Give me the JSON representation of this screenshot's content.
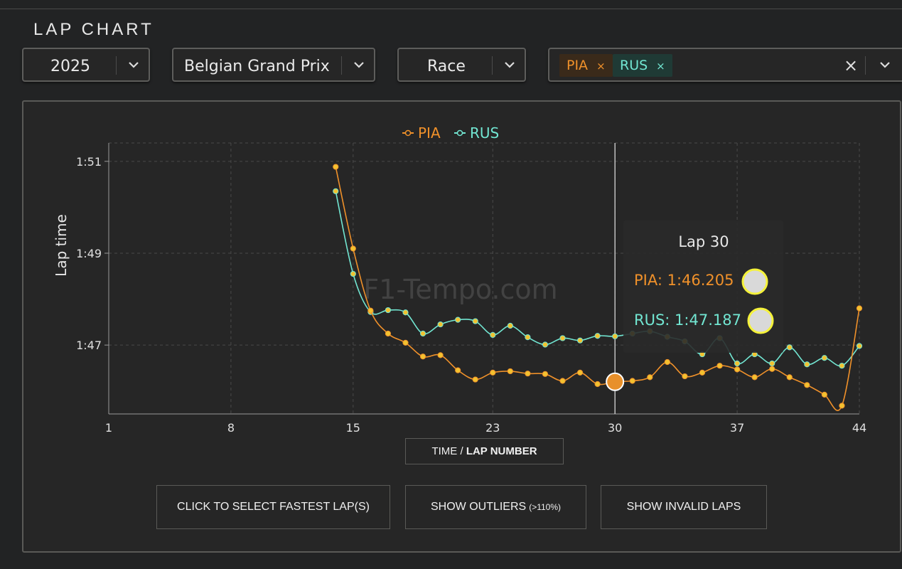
{
  "header": {
    "title": "LAP CHART"
  },
  "filters": {
    "year": "2025",
    "event": "Belgian Grand Prix",
    "session": "Race",
    "drivers": [
      {
        "code": "PIA",
        "remove": "×",
        "color": "#f0912a",
        "bg": "#3a2a1a"
      },
      {
        "code": "RUS",
        "remove": "×",
        "color": "#72e6d2",
        "bg": "#1f3a35"
      }
    ],
    "clear_icon": "×"
  },
  "watermark": "F1-Tempo.com",
  "tooltip": {
    "title": "Lap 30",
    "rows": [
      {
        "label": "PIA: 1:46.205",
        "color": "#f0912a"
      },
      {
        "label": "RUS: 1:47.187",
        "color": "#72e6d2"
      }
    ]
  },
  "axis_toggle": {
    "time": "TIME",
    "slash": " / ",
    "lap": "LAP NUMBER"
  },
  "buttons": {
    "fastest": "CLICK TO SELECT FASTEST LAP(S)",
    "outliers": "SHOW OUTLIERS",
    "outliers_note": "(>110%)",
    "invalid": "SHOW INVALID LAPS"
  },
  "chart_data": {
    "type": "line",
    "ylabel": "Lap time",
    "xlabel": "",
    "xlim": [
      1,
      44
    ],
    "xticks": [
      1,
      8,
      15,
      23,
      30,
      37,
      44
    ],
    "ylim": [
      105.5,
      111.4
    ],
    "yticks": [
      {
        "v": 111,
        "label": "1:51"
      },
      {
        "v": 109,
        "label": "1:49"
      },
      {
        "v": 107,
        "label": "1:47"
      }
    ],
    "grid": true,
    "legend_position": "top-center",
    "highlight_lap": 30,
    "series": [
      {
        "name": "PIA",
        "color": "#f0912a",
        "x": [
          14,
          15,
          16,
          17,
          18,
          19,
          20,
          21,
          22,
          23,
          24,
          25,
          26,
          27,
          28,
          29,
          30,
          31,
          32,
          33,
          34,
          35,
          36,
          37,
          38,
          39,
          40,
          41,
          42,
          43,
          44
        ],
        "values": [
          110.88,
          109.1,
          107.75,
          107.25,
          107.05,
          106.75,
          106.78,
          106.45,
          106.25,
          106.4,
          106.43,
          106.38,
          106.37,
          106.22,
          106.4,
          106.15,
          106.2,
          106.22,
          106.3,
          106.63,
          106.32,
          106.4,
          106.55,
          106.47,
          106.3,
          106.48,
          106.3,
          106.13,
          105.92,
          105.68,
          107.8
        ]
      },
      {
        "name": "RUS",
        "color": "#72e6d2",
        "x": [
          14,
          15,
          16,
          17,
          18,
          19,
          20,
          21,
          22,
          23,
          24,
          25,
          26,
          27,
          28,
          29,
          30,
          31,
          32,
          33,
          34,
          35,
          36,
          37,
          38,
          39,
          40,
          41,
          42,
          43,
          44
        ],
        "values": [
          110.35,
          108.55,
          107.72,
          107.76,
          107.71,
          107.25,
          107.45,
          107.55,
          107.52,
          107.22,
          107.42,
          107.17,
          107.01,
          107.15,
          107.1,
          107.2,
          107.19,
          107.25,
          107.3,
          107.18,
          107.08,
          106.8,
          107.15,
          106.6,
          106.8,
          106.6,
          106.95,
          106.58,
          106.72,
          106.55,
          106.98
        ]
      }
    ]
  }
}
